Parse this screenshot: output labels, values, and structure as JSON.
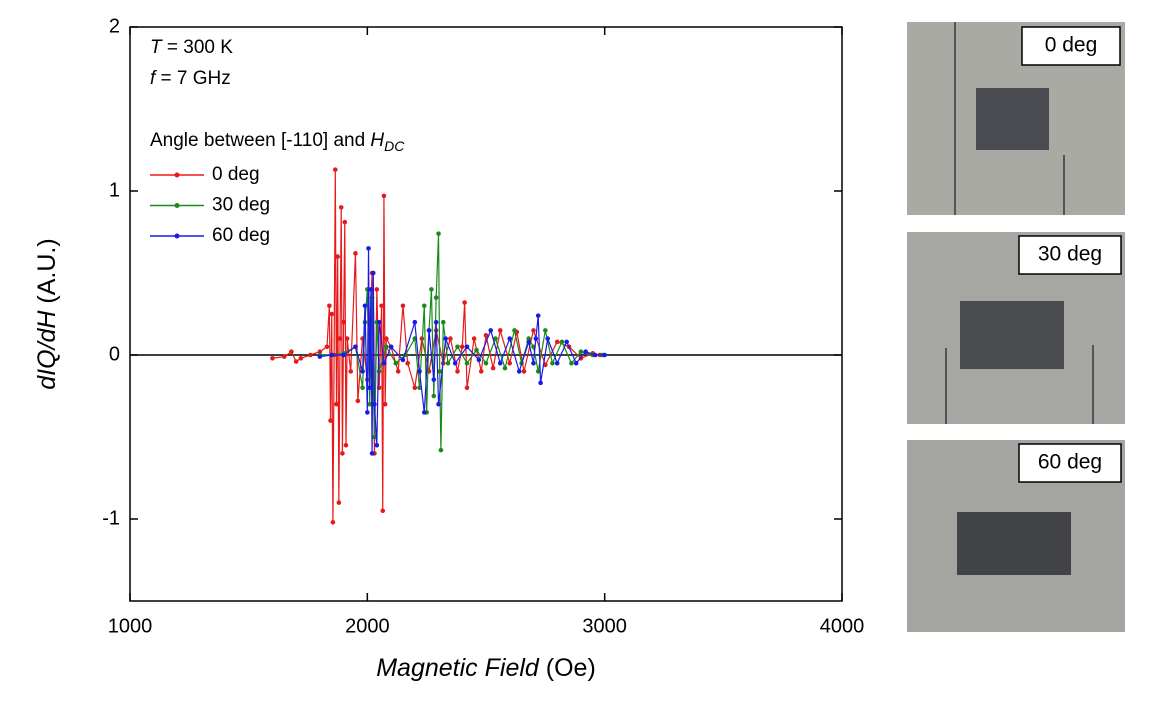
{
  "chart_data": {
    "type": "line",
    "xlabel": [
      "Magnetic Field",
      "(Oe)"
    ],
    "ylabel": [
      "dIQ/dH",
      "(A.U.)"
    ],
    "annotations": [
      [
        "T",
        " = 300 K"
      ],
      [
        "f",
        " = 7 GHz"
      ]
    ],
    "legend_title": [
      "Angle between [-110] and ",
      "H",
      "DC"
    ],
    "xlim": [
      1000,
      4000
    ],
    "ylim": [
      -1.5,
      2
    ],
    "xticks": [
      1000,
      2000,
      3000,
      4000
    ],
    "yticks": [
      -1,
      0,
      1,
      2
    ],
    "series": [
      {
        "name": "0 deg",
        "color": "#e8191a",
        "x": [
          1600,
          1650,
          1680,
          1700,
          1720,
          1760,
          1800,
          1830,
          1840,
          1845,
          1850,
          1855,
          1860,
          1865,
          1870,
          1875,
          1880,
          1885,
          1890,
          1895,
          1900,
          1905,
          1910,
          1915,
          1930,
          1950,
          1960,
          1980,
          2000,
          2020,
          2030,
          2040,
          2050,
          2060,
          2065,
          2070,
          2075,
          2080,
          2100,
          2130,
          2150,
          2170,
          2200,
          2230,
          2260,
          2290,
          2320,
          2350,
          2380,
          2400,
          2410,
          2420,
          2450,
          2480,
          2500,
          2530,
          2560,
          2600,
          2630,
          2660,
          2700,
          2750,
          2800,
          2850,
          2900,
          2950,
          2980
        ],
        "values": [
          -0.02,
          -0.01,
          0.02,
          -0.04,
          -0.02,
          0.0,
          0.02,
          0.05,
          0.3,
          -0.4,
          0.25,
          -1.02,
          0.0,
          1.13,
          -0.3,
          0.6,
          -0.9,
          0.1,
          0.9,
          -0.6,
          0.2,
          0.81,
          -0.55,
          0.1,
          -0.1,
          0.62,
          -0.28,
          0.1,
          -0.15,
          0.5,
          -0.6,
          0.4,
          -0.2,
          0.3,
          -0.95,
          0.97,
          -0.3,
          0.1,
          0.05,
          -0.1,
          0.3,
          -0.05,
          -0.2,
          0.1,
          -0.1,
          0.15,
          -0.05,
          0.1,
          -0.1,
          0.05,
          0.32,
          -0.2,
          0.1,
          -0.1,
          0.12,
          -0.08,
          0.15,
          -0.05,
          0.14,
          -0.1,
          0.15,
          -0.06,
          0.08,
          0.05,
          -0.02,
          0.01,
          0.0
        ]
      },
      {
        "name": "30 deg",
        "color": "#1a8a1a",
        "x": [
          1800,
          1850,
          1900,
          1950,
          1980,
          1990,
          2000,
          2010,
          2020,
          2030,
          2040,
          2050,
          2080,
          2120,
          2160,
          2200,
          2220,
          2240,
          2250,
          2260,
          2270,
          2280,
          2290,
          2300,
          2305,
          2310,
          2320,
          2340,
          2380,
          2420,
          2460,
          2500,
          2540,
          2580,
          2620,
          2650,
          2680,
          2700,
          2720,
          2750,
          2780,
          2820,
          2860,
          2900,
          2950,
          2990
        ],
        "values": [
          0.0,
          0.0,
          0.01,
          0.05,
          -0.2,
          0.2,
          0.4,
          -0.3,
          0.35,
          -0.5,
          0.2,
          -0.1,
          0.05,
          -0.05,
          0.0,
          0.1,
          -0.2,
          0.3,
          -0.35,
          0.15,
          0.4,
          -0.25,
          0.35,
          0.74,
          -0.1,
          -0.58,
          0.2,
          -0.05,
          0.05,
          -0.05,
          0.03,
          -0.05,
          0.1,
          -0.08,
          0.15,
          -0.05,
          0.1,
          0.05,
          -0.1,
          0.15,
          -0.05,
          0.08,
          -0.05,
          0.02,
          0.0,
          0.0
        ]
      },
      {
        "name": "60 deg",
        "color": "#1a1ae8",
        "x": [
          1800,
          1850,
          1900,
          1950,
          1980,
          1990,
          2000,
          2005,
          2010,
          2015,
          2020,
          2025,
          2030,
          2040,
          2050,
          2070,
          2100,
          2150,
          2200,
          2220,
          2240,
          2260,
          2280,
          2290,
          2300,
          2330,
          2370,
          2420,
          2470,
          2520,
          2560,
          2600,
          2640,
          2680,
          2700,
          2710,
          2720,
          2730,
          2760,
          2800,
          2840,
          2880,
          2920,
          2960,
          3000
        ],
        "values": [
          -0.01,
          0.0,
          0.0,
          0.05,
          -0.1,
          0.3,
          -0.35,
          0.65,
          -0.2,
          0.4,
          -0.6,
          0.5,
          -0.3,
          -0.55,
          0.2,
          -0.05,
          0.05,
          -0.03,
          0.2,
          -0.1,
          -0.35,
          0.15,
          -0.15,
          0.2,
          -0.3,
          0.1,
          -0.05,
          0.05,
          -0.03,
          0.15,
          -0.05,
          0.1,
          -0.1,
          0.08,
          -0.05,
          0.1,
          0.24,
          -0.17,
          0.1,
          -0.05,
          0.08,
          -0.05,
          0.02,
          0.0,
          0.0
        ]
      }
    ]
  },
  "photos": [
    {
      "label": "0 deg"
    },
    {
      "label": "30 deg"
    },
    {
      "label": "60 deg"
    }
  ]
}
